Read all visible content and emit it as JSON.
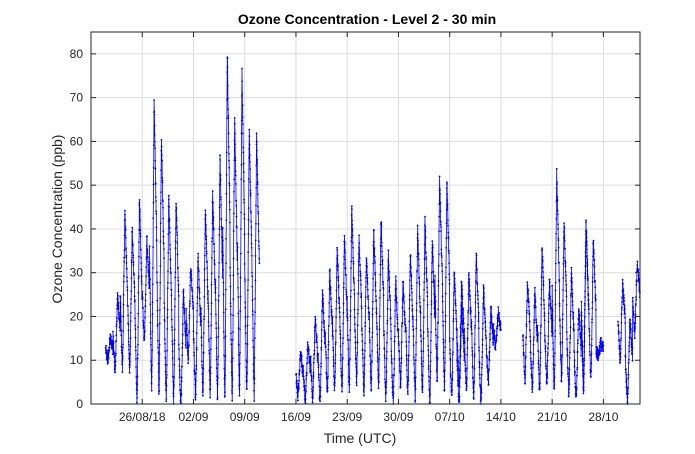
{
  "colors": {
    "series": "#0000ff",
    "axis": "#262626",
    "grid": "#dcdcdc",
    "background": "#ffffff"
  },
  "chart_data": {
    "type": "line",
    "title": "Ozone Concentration - Level 2 - 30 min",
    "xlabel": "Time (UTC)",
    "ylabel": "Ozone Concentration (ppb)",
    "x_type": "date",
    "xlim": [
      "2018-08-19",
      "2018-11-02"
    ],
    "ylim": [
      0,
      85
    ],
    "grid": true,
    "x_ticks": [
      {
        "date": "2018-08-26",
        "label": "26/08/18"
      },
      {
        "date": "2018-09-02",
        "label": "02/09"
      },
      {
        "date": "2018-09-09",
        "label": "09/09"
      },
      {
        "date": "2018-09-16",
        "label": "16/09"
      },
      {
        "date": "2018-09-23",
        "label": "23/09"
      },
      {
        "date": "2018-09-30",
        "label": "30/09"
      },
      {
        "date": "2018-10-07",
        "label": "07/10"
      },
      {
        "date": "2018-10-14",
        "label": "14/10"
      },
      {
        "date": "2018-10-21",
        "label": "21/10"
      },
      {
        "date": "2018-10-28",
        "label": "28/10"
      }
    ],
    "y_ticks": [
      0,
      10,
      20,
      30,
      40,
      50,
      60,
      70,
      80
    ],
    "markers": "dot",
    "series": [
      {
        "segments": [
          {
            "start": "2018-08-21",
            "end": "2018-09-11",
            "daily_max": [
              15,
              25,
              44,
              40,
              47,
              38,
              69,
              62,
              48,
              47,
              26,
              32,
              34,
              45,
              49,
              57,
              81,
              65,
              76,
              63,
              62
            ],
            "daily_min": [
              10,
              8,
              8,
              8,
              0,
              14,
              3,
              2,
              1,
              1,
              0,
              10,
              1,
              2,
              2,
              1,
              1,
              1,
              2,
              2,
              2
            ]
          },
          {
            "start": "2018-09-16",
            "end": "2018-10-08",
            "daily_max": [
              12,
              14,
              20,
              26,
              31,
              36,
              39,
              45,
              38,
              35,
              40,
              43,
              34,
              29,
              28,
              35,
              40,
              42,
              38,
              52,
              52,
              30,
              22
            ],
            "daily_min": [
              2,
              1,
              1,
              0,
              2,
              3,
              2,
              3,
              5,
              2,
              3,
              4,
              1,
              0,
              4,
              2,
              1,
              2,
              0,
              5,
              3,
              1,
              0
            ]
          },
          {
            "start": "2018-10-08",
            "end": "2018-10-13",
            "daily_max": [
              28,
              30,
              35,
              27,
              22,
              21
            ],
            "daily_min": [
              4,
              3,
              1,
              0,
              5,
              13
            ]
          },
          {
            "start": "2018-10-17",
            "end": "2018-10-25",
            "daily_max": [
              28,
              26,
              36,
              28,
              53,
              42,
              30,
              22,
              42
            ],
            "daily_min": [
              5,
              3,
              2,
              4,
              2,
              5,
              2,
              1,
              3
            ]
          },
          {
            "start": "2018-10-25",
            "end": "2018-10-27",
            "daily_max": [
              42,
              38,
              14
            ],
            "daily_min": [
              3,
              5,
              11
            ]
          },
          {
            "start": "2018-10-30",
            "end": "2018-11-01",
            "daily_max": [
              28,
              20,
              33
            ],
            "daily_min": [
              10,
              1,
              16
            ]
          }
        ]
      }
    ]
  }
}
